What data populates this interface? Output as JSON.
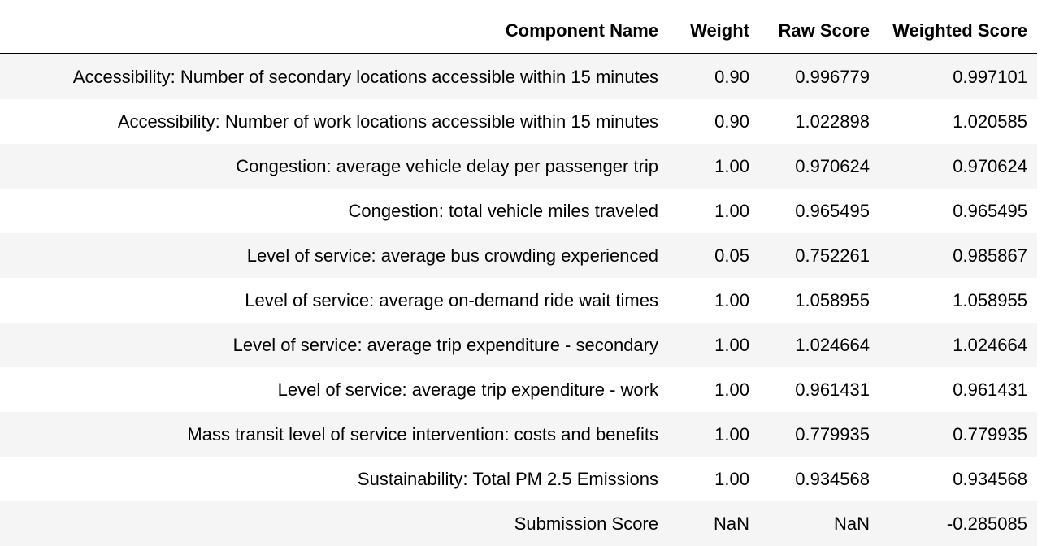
{
  "table": {
    "headers": {
      "component_name": "Component Name",
      "weight": "Weight",
      "raw_score": "Raw Score",
      "weighted_score": "Weighted Score"
    },
    "rows": [
      {
        "component_name": "Accessibility: Number of secondary locations accessible within 15 minutes",
        "weight": "0.90",
        "raw_score": "0.996779",
        "weighted_score": "0.997101"
      },
      {
        "component_name": "Accessibility: Number of work locations accessible within 15 minutes",
        "weight": "0.90",
        "raw_score": "1.022898",
        "weighted_score": "1.020585"
      },
      {
        "component_name": "Congestion: average vehicle delay per passenger trip",
        "weight": "1.00",
        "raw_score": "0.970624",
        "weighted_score": "0.970624"
      },
      {
        "component_name": "Congestion: total vehicle miles traveled",
        "weight": "1.00",
        "raw_score": "0.965495",
        "weighted_score": "0.965495"
      },
      {
        "component_name": "Level of service: average bus crowding experienced",
        "weight": "0.05",
        "raw_score": "0.752261",
        "weighted_score": "0.985867"
      },
      {
        "component_name": "Level of service: average on-demand ride wait times",
        "weight": "1.00",
        "raw_score": "1.058955",
        "weighted_score": "1.058955"
      },
      {
        "component_name": "Level of service: average trip expenditure - secondary",
        "weight": "1.00",
        "raw_score": "1.024664",
        "weighted_score": "1.024664"
      },
      {
        "component_name": "Level of service: average trip expenditure - work",
        "weight": "1.00",
        "raw_score": "0.961431",
        "weighted_score": "0.961431"
      },
      {
        "component_name": "Mass transit level of service intervention: costs and benefits",
        "weight": "1.00",
        "raw_score": "0.779935",
        "weighted_score": "0.779935"
      },
      {
        "component_name": "Sustainability: Total PM 2.5 Emissions",
        "weight": "1.00",
        "raw_score": "0.934568",
        "weighted_score": "0.934568"
      },
      {
        "component_name": "Submission Score",
        "weight": "NaN",
        "raw_score": "NaN",
        "weighted_score": "-0.285085"
      }
    ]
  }
}
